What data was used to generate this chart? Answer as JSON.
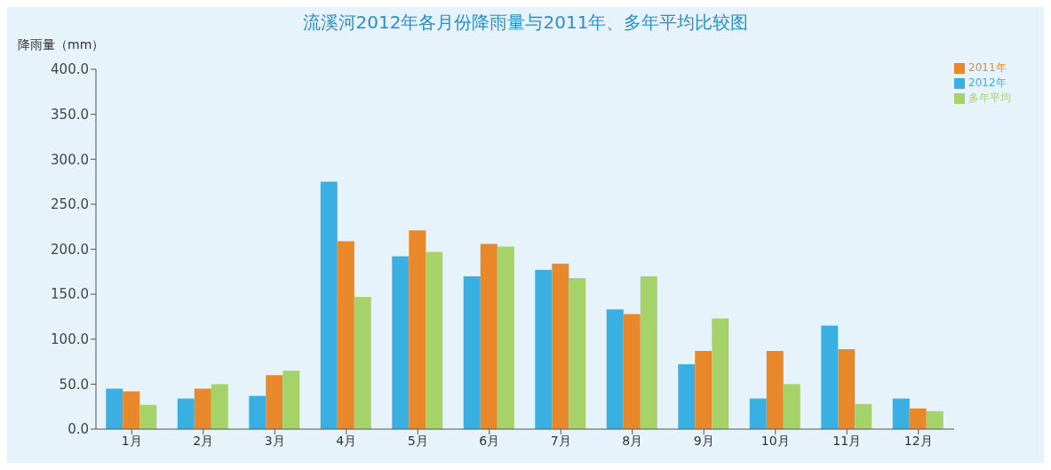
{
  "chart_data": {
    "type": "bar",
    "title": "流溪河2012年各月份降雨量与2011年、多年平均比较图",
    "ylabel": "降雨量（mm）",
    "categories": [
      "1月",
      "2月",
      "3月",
      "4月",
      "5月",
      "6月",
      "7月",
      "8月",
      "9月",
      "10月",
      "11月",
      "12月"
    ],
    "series": [
      {
        "name": "2012年",
        "color": "#3ab0e2",
        "values": [
          45,
          34,
          37,
          275,
          192,
          170,
          177,
          133,
          72,
          34,
          115,
          34
        ]
      },
      {
        "name": "2011年",
        "color": "#e8882a",
        "values": [
          42,
          45,
          60,
          209,
          221,
          206,
          184,
          128,
          87,
          87,
          89,
          23
        ]
      },
      {
        "name": "多年平均",
        "color": "#a5d36a",
        "values": [
          27,
          50,
          65,
          147,
          197,
          203,
          168,
          170,
          123,
          50,
          28,
          20
        ]
      }
    ],
    "ylim": [
      0,
      400
    ],
    "yticks": [
      {
        "value": 0,
        "label": "0.0"
      },
      {
        "value": 50,
        "label": "50.0"
      },
      {
        "value": 100,
        "label": "100.0"
      },
      {
        "value": 150,
        "label": "150.0"
      },
      {
        "value": 200,
        "label": "200.0"
      },
      {
        "value": 250,
        "label": "250.0"
      },
      {
        "value": 300,
        "label": "300.0"
      },
      {
        "value": 350,
        "label": "350.0"
      },
      {
        "value": 400,
        "label": "400.0"
      }
    ],
    "grid": false,
    "legend": "top right"
  }
}
